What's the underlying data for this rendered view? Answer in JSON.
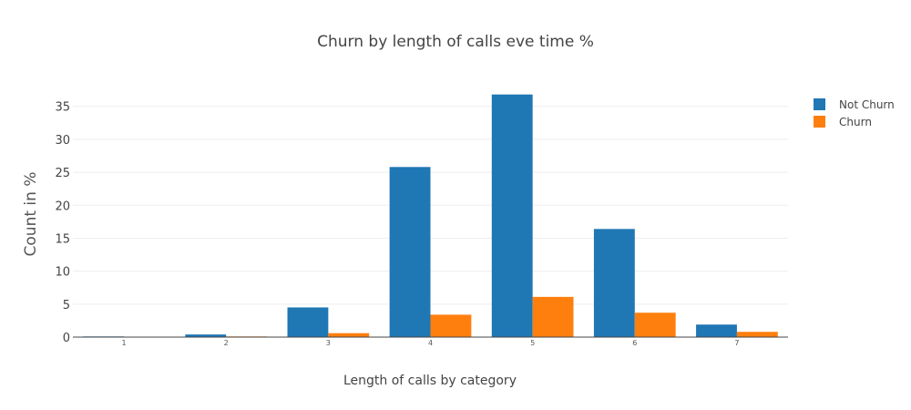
{
  "chart_data": {
    "type": "bar",
    "title": "Churn by length of calls eve time %",
    "xlabel": "Length of calls by category",
    "ylabel": "Count in %",
    "categories": [
      "1",
      "2",
      "3",
      "4",
      "5",
      "6",
      "7"
    ],
    "series": [
      {
        "name": "Not Churn",
        "color": "#1f77b4",
        "values": [
          0.1,
          0.4,
          4.5,
          25.8,
          36.8,
          16.4,
          1.9
        ]
      },
      {
        "name": "Churn",
        "color": "#ff7f0e",
        "values": [
          0.0,
          0.1,
          0.6,
          3.4,
          6.1,
          3.7,
          0.8
        ]
      }
    ],
    "ylim": [
      0,
      38
    ],
    "yticks": [
      0,
      5,
      10,
      15,
      20,
      25,
      30,
      35
    ],
    "grid": true,
    "legend": "top-right"
  }
}
